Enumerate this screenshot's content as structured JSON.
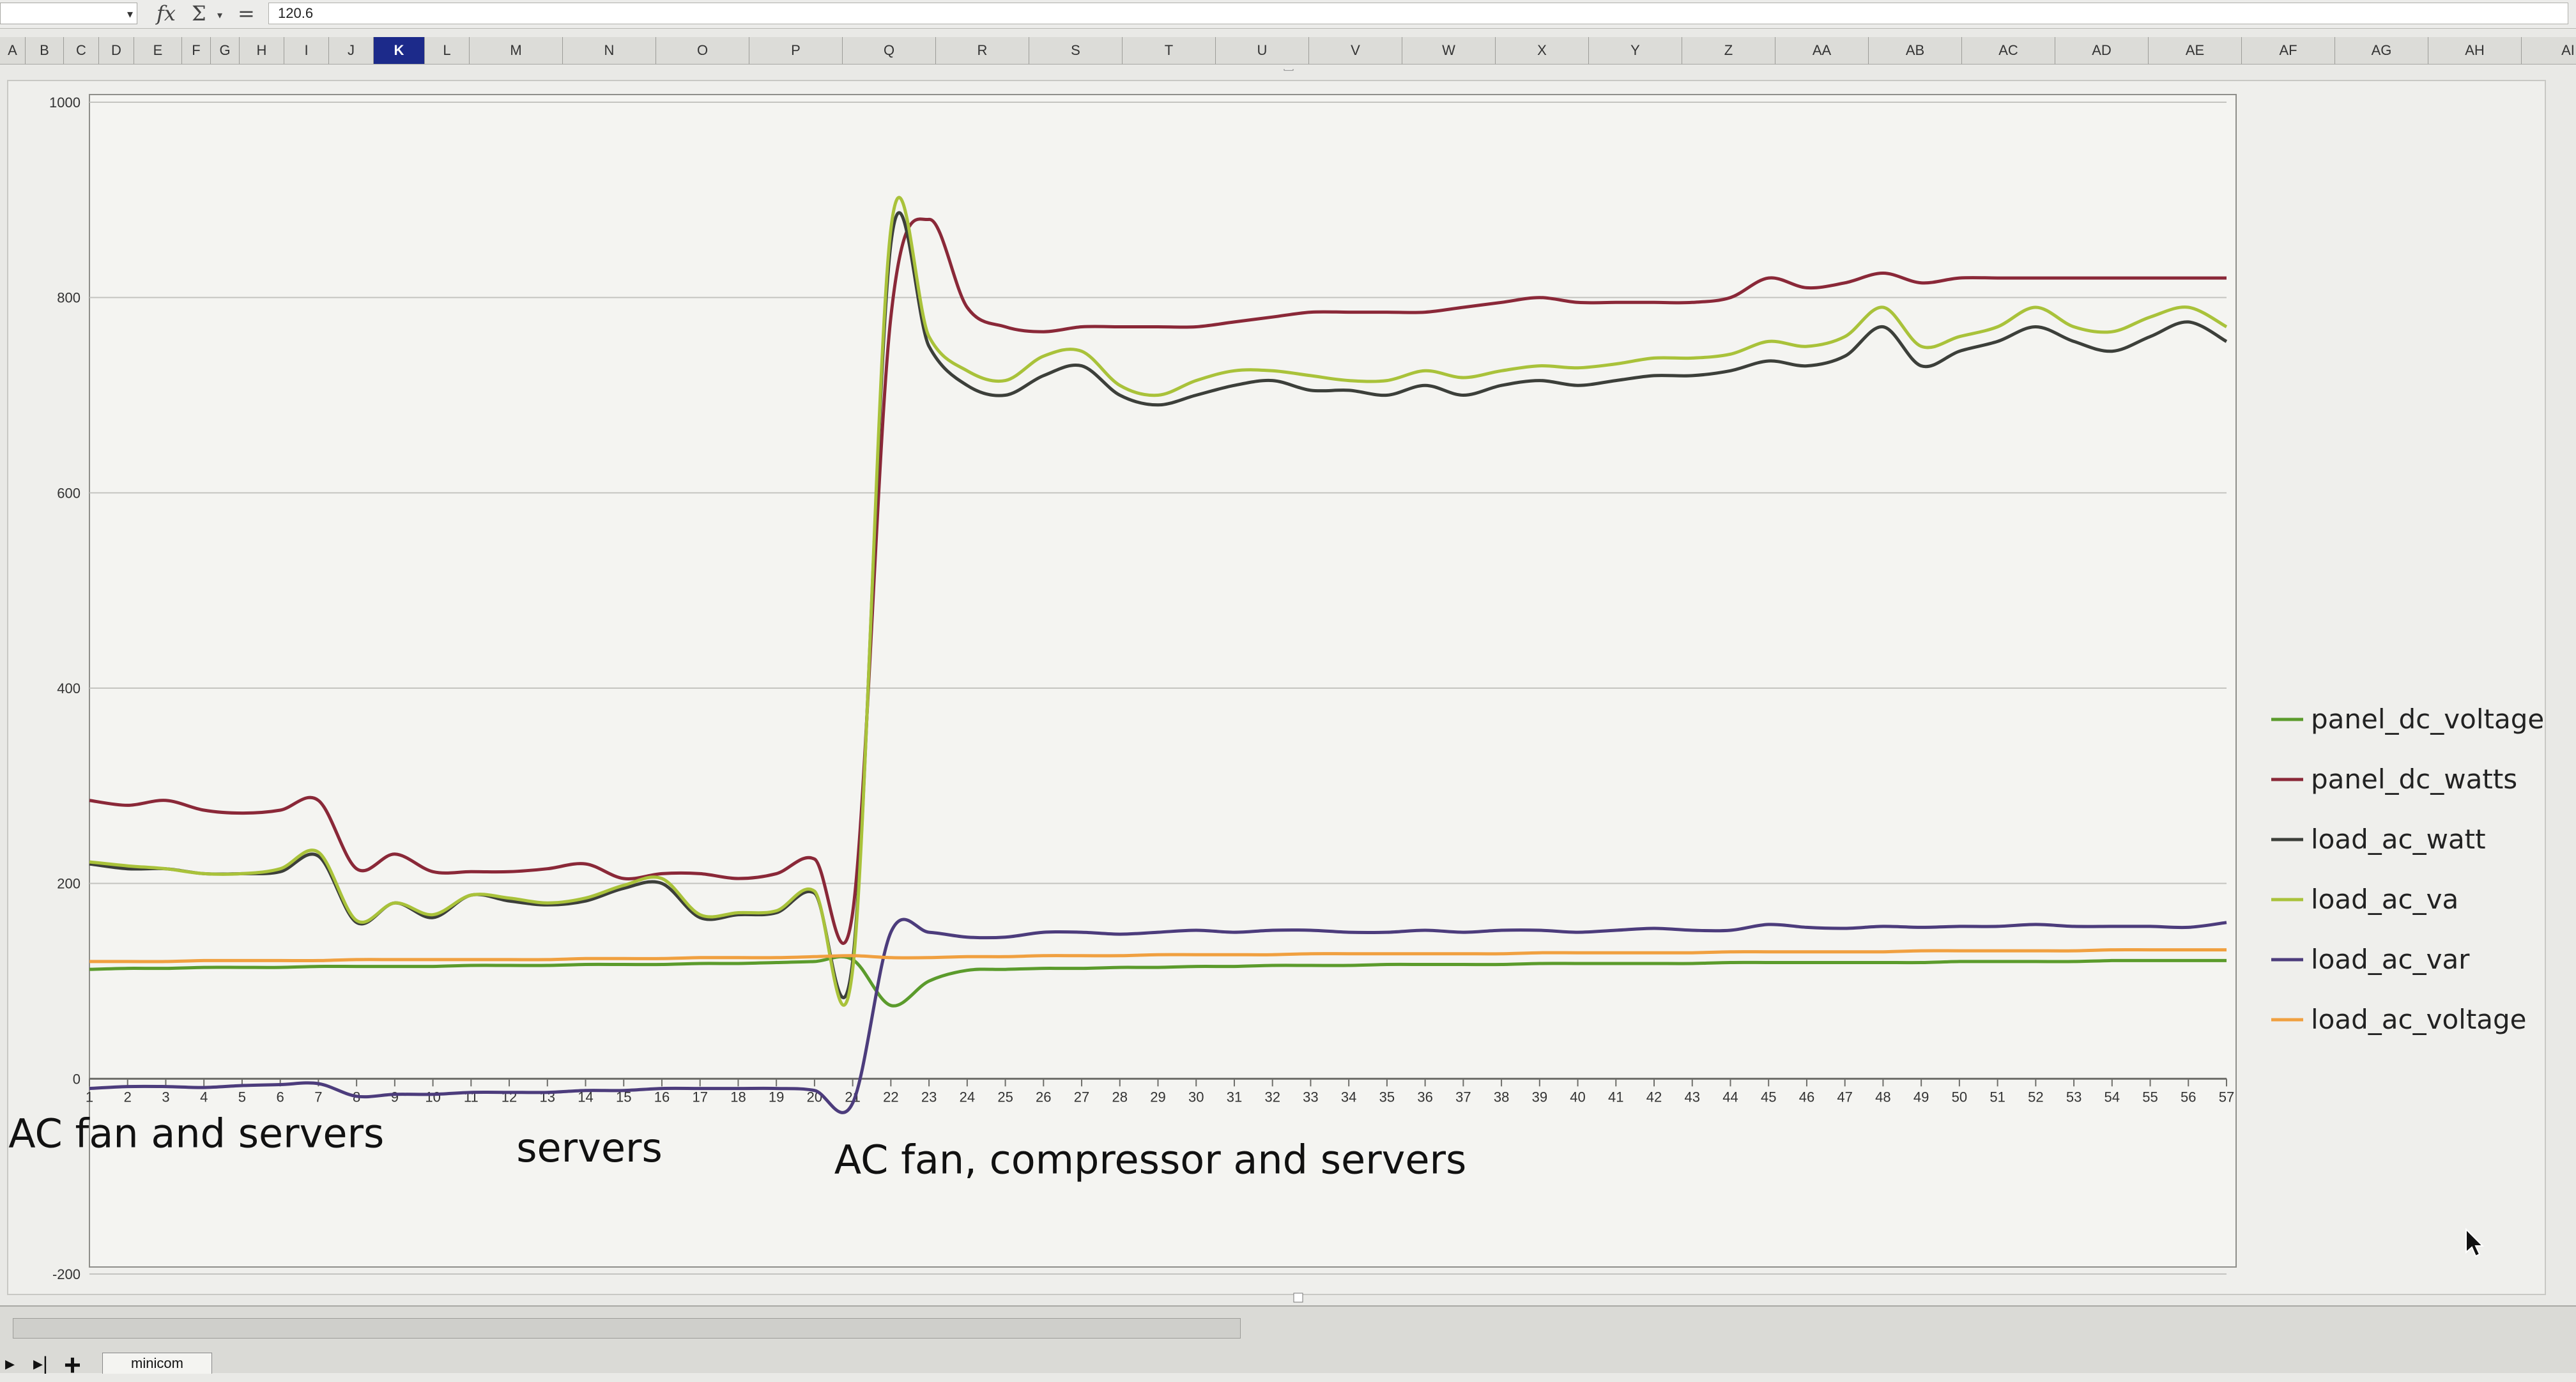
{
  "formula_bar": {
    "name_box_value": "",
    "fx_symbol": "fx",
    "sum_symbol": "Σ",
    "equals_symbol": "=",
    "formula_value": "120.6"
  },
  "columns": [
    "A",
    "B",
    "C",
    "D",
    "E",
    "F",
    "G",
    "H",
    "I",
    "J",
    "K",
    "L",
    "M",
    "N",
    "O",
    "P",
    "Q",
    "R",
    "S",
    "T",
    "U",
    "V",
    "W",
    "X",
    "Y",
    "Z",
    "AA",
    "AB",
    "AC",
    "AD",
    "AE",
    "AF",
    "AG",
    "AH",
    "AI"
  ],
  "selected_column": "K",
  "sheet_tab": "minicom",
  "colors": {
    "panel_dc_voltage": "#5b9b2c",
    "panel_dc_watts": "#8a2838",
    "load_ac_watt": "#3c3f3a",
    "load_ac_va": "#a9c23a",
    "load_ac_var": "#4c3c7c",
    "load_ac_voltage": "#f0a040",
    "grid": "#c4c4c0",
    "axis": "#6e6e6a"
  },
  "chart_data": {
    "type": "line",
    "title": "",
    "xlabel": "",
    "ylabel": "",
    "ylim": [
      -200,
      1000
    ],
    "yticks": [
      -200,
      0,
      200,
      400,
      600,
      800,
      1000
    ],
    "x": [
      1,
      2,
      3,
      4,
      5,
      6,
      7,
      8,
      9,
      10,
      11,
      12,
      13,
      14,
      15,
      16,
      17,
      18,
      19,
      20,
      21,
      22,
      23,
      24,
      25,
      26,
      27,
      28,
      29,
      30,
      31,
      32,
      33,
      34,
      35,
      36,
      37,
      38,
      39,
      40,
      41,
      42,
      43,
      44,
      45,
      46,
      47,
      48,
      49,
      50,
      51,
      52,
      53,
      54,
      55,
      56,
      57
    ],
    "legend_position": "right",
    "grid": true,
    "series": [
      {
        "name": "panel_dc_voltage",
        "values": [
          112,
          113,
          113,
          114,
          114,
          114,
          115,
          115,
          115,
          115,
          116,
          116,
          116,
          117,
          117,
          117,
          118,
          118,
          119,
          120,
          122,
          75,
          100,
          111,
          112,
          113,
          113,
          114,
          114,
          115,
          115,
          116,
          116,
          116,
          117,
          117,
          117,
          117,
          118,
          118,
          118,
          118,
          118,
          119,
          119,
          119,
          119,
          119,
          119,
          120,
          120,
          120,
          120,
          121,
          121,
          121,
          121
        ]
      },
      {
        "name": "panel_dc_watts",
        "values": [
          285,
          280,
          285,
          275,
          272,
          275,
          285,
          215,
          230,
          212,
          212,
          212,
          215,
          220,
          205,
          210,
          210,
          205,
          210,
          225,
          170,
          780,
          880,
          790,
          770,
          765,
          770,
          770,
          770,
          770,
          775,
          780,
          785,
          785,
          785,
          785,
          790,
          795,
          800,
          795,
          795,
          795,
          795,
          800,
          820,
          810,
          815,
          825,
          815,
          820,
          820,
          820,
          820,
          820,
          820,
          820,
          820
        ]
      },
      {
        "name": "load_ac_watt",
        "values": [
          220,
          215,
          215,
          210,
          210,
          212,
          228,
          160,
          180,
          165,
          188,
          182,
          178,
          182,
          195,
          200,
          165,
          168,
          170,
          190,
          120,
          855,
          750,
          710,
          700,
          720,
          730,
          700,
          690,
          700,
          710,
          715,
          705,
          705,
          700,
          710,
          700,
          710,
          715,
          710,
          715,
          720,
          720,
          725,
          735,
          730,
          740,
          770,
          730,
          745,
          755,
          770,
          755,
          745,
          760,
          775,
          755
        ]
      },
      {
        "name": "load_ac_va",
        "values": [
          222,
          218,
          215,
          210,
          210,
          215,
          232,
          162,
          180,
          168,
          188,
          185,
          180,
          185,
          198,
          205,
          168,
          170,
          172,
          192,
          112,
          870,
          760,
          725,
          715,
          740,
          745,
          710,
          700,
          715,
          725,
          725,
          720,
          715,
          715,
          725,
          718,
          725,
          730,
          728,
          732,
          738,
          738,
          742,
          755,
          750,
          760,
          790,
          750,
          760,
          770,
          790,
          770,
          765,
          780,
          790,
          770
        ]
      },
      {
        "name": "load_ac_var",
        "values": [
          -10,
          -8,
          -8,
          -9,
          -7,
          -6,
          -5,
          -18,
          -16,
          -16,
          -14,
          -14,
          -14,
          -12,
          -12,
          -10,
          -10,
          -10,
          -10,
          -12,
          -25,
          150,
          150,
          145,
          145,
          150,
          150,
          148,
          150,
          152,
          150,
          152,
          152,
          150,
          150,
          152,
          150,
          152,
          152,
          150,
          152,
          154,
          152,
          152,
          158,
          155,
          154,
          156,
          155,
          156,
          156,
          158,
          156,
          156,
          156,
          155,
          160
        ]
      },
      {
        "name": "load_ac_voltage",
        "values": [
          120,
          120,
          120,
          121,
          121,
          121,
          121,
          122,
          122,
          122,
          122,
          122,
          122,
          123,
          123,
          123,
          124,
          124,
          124,
          125,
          126,
          124,
          124,
          125,
          125,
          126,
          126,
          126,
          127,
          127,
          127,
          127,
          128,
          128,
          128,
          128,
          128,
          128,
          129,
          129,
          129,
          129,
          129,
          130,
          130,
          130,
          130,
          130,
          131,
          131,
          131,
          131,
          131,
          132,
          132,
          132,
          132
        ]
      }
    ],
    "annotations": [
      {
        "text": "AC fan and servers",
        "x": 3.8,
        "y": -70
      },
      {
        "text": "servers",
        "x": 14.1,
        "y": -85
      },
      {
        "text": "AC fan, compressor and servers",
        "x": 28.8,
        "y": -97
      }
    ]
  }
}
